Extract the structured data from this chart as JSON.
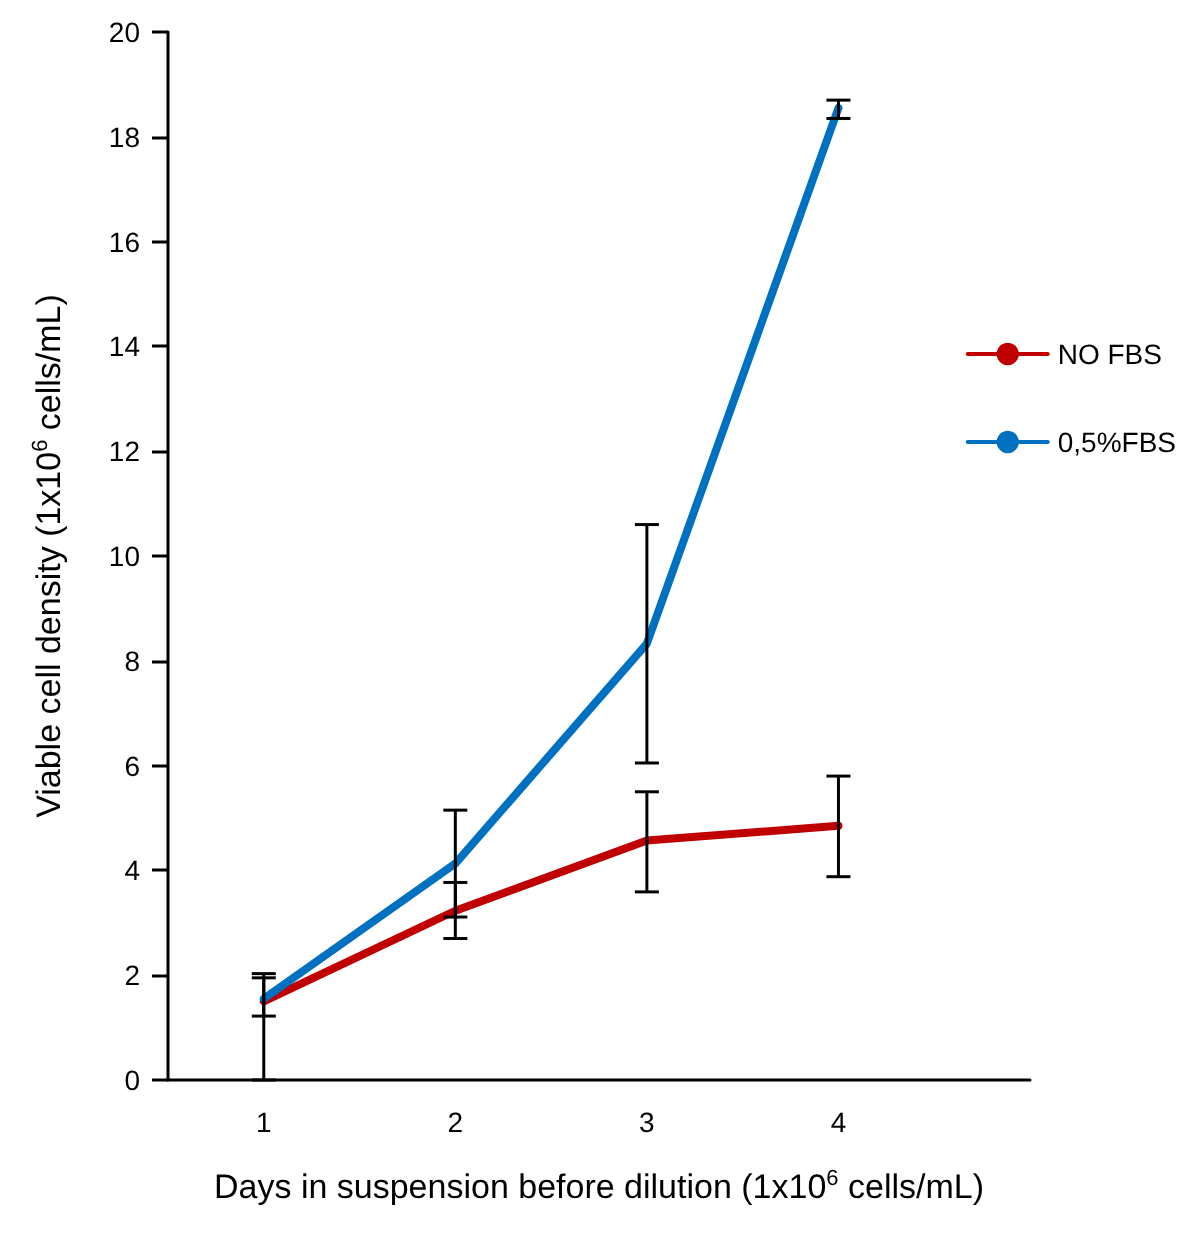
{
  "chart_data": {
    "type": "line",
    "xlabel": "Days in suspension before dilution (1x10$^{6}$ cells/mL)",
    "ylabel": "Viable cell density (1x10$^{6}$ cells/mL)",
    "x": [
      1,
      2,
      3,
      4
    ],
    "xlim": [
      0.5,
      5
    ],
    "xticks": [
      1,
      2,
      3,
      4
    ],
    "ylim": [
      0,
      20
    ],
    "yticks": [
      0,
      2,
      4,
      6,
      8,
      10,
      12,
      14,
      16,
      18,
      20
    ],
    "series": [
      {
        "name": "NO FBS",
        "color": "#c00000",
        "values": [
          1.5,
          3.23,
          4.57,
          4.85
        ],
        "errors": [
          [
            1.22,
            1.95
          ],
          [
            2.7,
            3.77
          ],
          [
            3.59,
            5.5
          ],
          [
            3.88,
            5.8
          ]
        ]
      },
      {
        "name": "0,5%FBS",
        "color": "#0070c0",
        "values": [
          1.55,
          4.13,
          8.33,
          18.55
        ],
        "errors": [
          [
            0,
            2.03
          ],
          [
            3.11,
            5.15
          ],
          [
            6.05,
            10.6
          ],
          [
            18.35,
            18.7
          ]
        ]
      }
    ],
    "grid": false,
    "legend": "right",
    "marker": "none",
    "line_style": "solid"
  }
}
